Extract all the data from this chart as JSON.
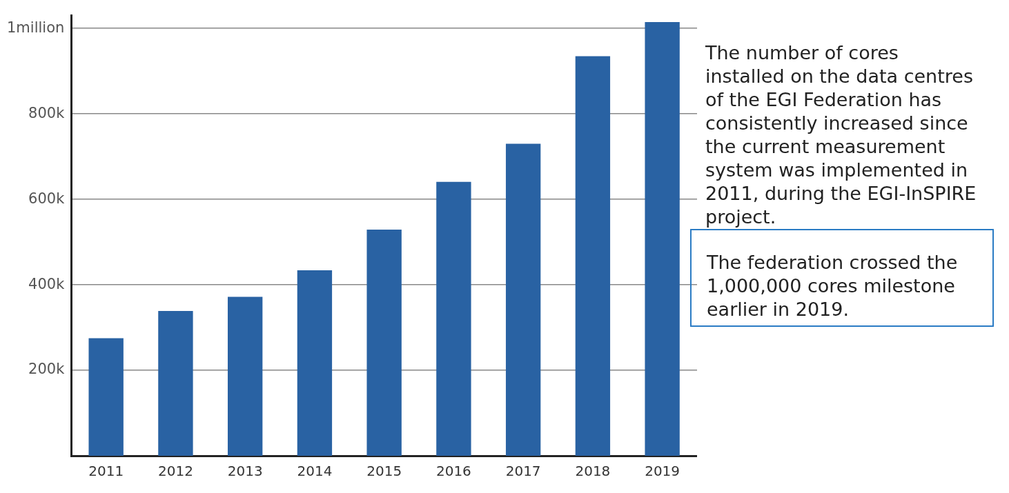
{
  "chart_data": {
    "type": "bar",
    "categories": [
      "2011",
      "2012",
      "2013",
      "2014",
      "2015",
      "2016",
      "2017",
      "2018",
      "2019"
    ],
    "values": [
      275000,
      339000,
      372000,
      434000,
      529000,
      641000,
      730000,
      935000,
      1015000
    ],
    "color": "#2962a3",
    "ylim": [
      0,
      1030000
    ],
    "yticks": [
      {
        "value": 200000,
        "label": "200k"
      },
      {
        "value": 400000,
        "label": "400k"
      },
      {
        "value": 600000,
        "label": "600k"
      },
      {
        "value": 800000,
        "label": "800k"
      },
      {
        "value": 1000000,
        "label": "1million"
      }
    ],
    "grid": "y",
    "annotations": [
      "The number of cores installed on the data centres of the EGI Federation has consistently increased since the current measurement system was implemented in 2011, during the EGI-InSPIRE project.",
      "The federation crossed the 1,000,000 cores milestone earlier in 2019."
    ]
  }
}
